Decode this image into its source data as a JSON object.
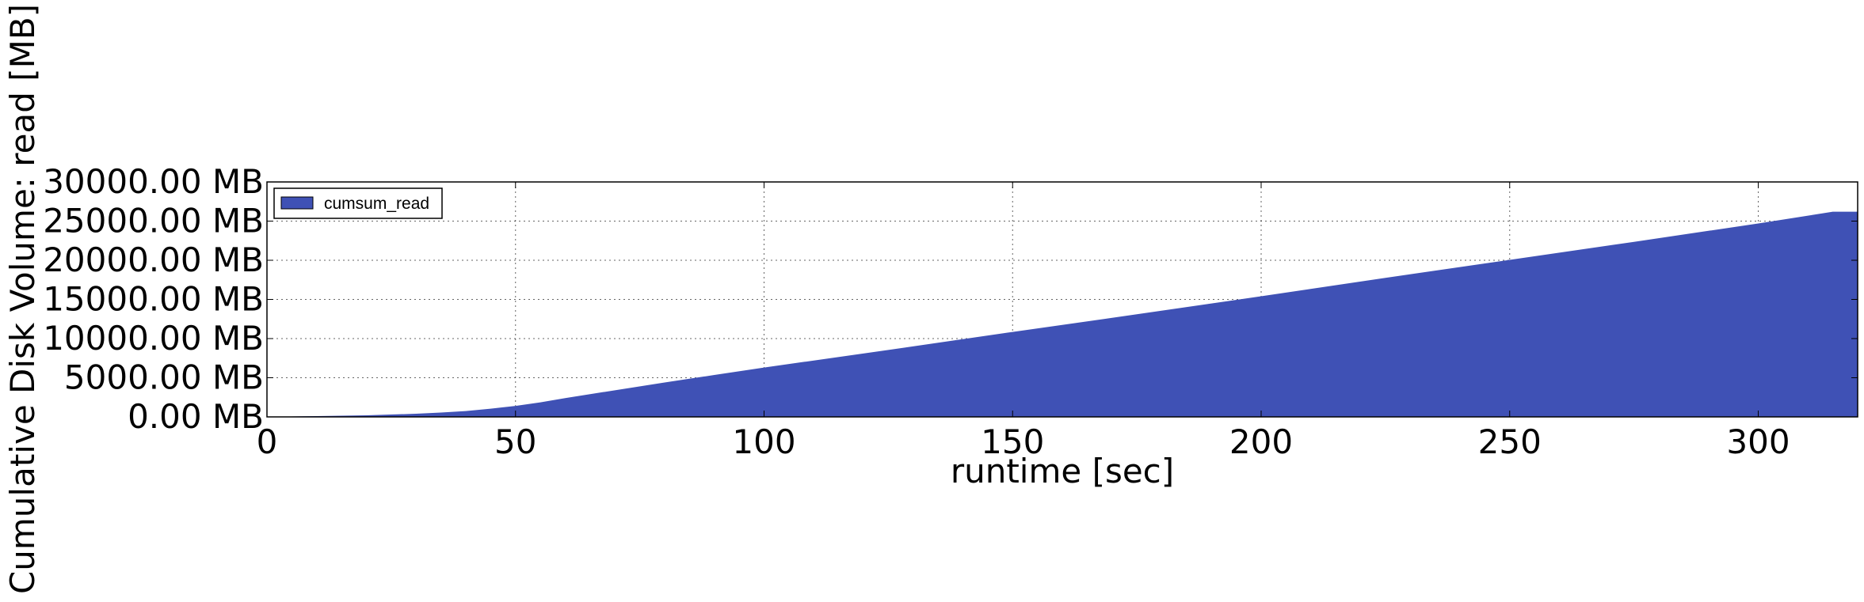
{
  "chart_data": {
    "type": "area",
    "title": "",
    "xlabel": "runtime [sec]",
    "ylabel": "Cumulative Disk Volume: read [MB]",
    "xlim": [
      0,
      320
    ],
    "ylim": [
      0,
      30000
    ],
    "x_ticks": [
      0,
      50,
      100,
      150,
      200,
      250,
      300
    ],
    "x_tick_labels": [
      "0",
      "50",
      "100",
      "150",
      "200",
      "250",
      "300"
    ],
    "y_ticks": [
      0,
      5000,
      10000,
      15000,
      20000,
      25000,
      30000
    ],
    "y_tick_labels": [
      "0.00 MB",
      "5000.00 MB",
      "10000.00 MB",
      "15000.00 MB",
      "20000.00 MB",
      "25000.00 MB",
      "30000.00 MB"
    ],
    "grid": true,
    "legend_position": "top-left",
    "series": [
      {
        "name": "cumsum_read",
        "color": "#3f51b5",
        "x": [
          0,
          10,
          20,
          30,
          35,
          40,
          45,
          50,
          55,
          60,
          70,
          80,
          90,
          100,
          125,
          150,
          175,
          200,
          225,
          250,
          275,
          300,
          315,
          320
        ],
        "y": [
          0,
          100,
          200,
          400,
          550,
          750,
          1050,
          1400,
          1850,
          2400,
          3400,
          4400,
          5350,
          6300,
          8550,
          10850,
          13100,
          15400,
          17750,
          20050,
          22350,
          24700,
          26200,
          26200
        ]
      }
    ]
  }
}
